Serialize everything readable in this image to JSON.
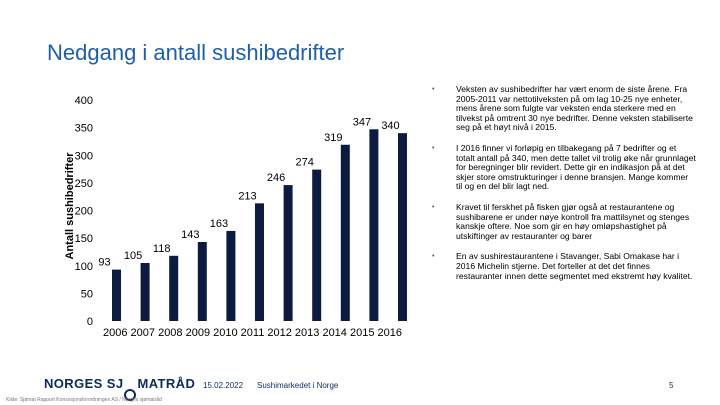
{
  "slide": {
    "title": "Nedgang i antall sushibedrifter",
    "bullets": [
      "Veksten av sushibedrifter har vært enorm de siste årene. Fra 2005-2011 var nettotilveksten på om lag 10-25 nye enheter, mens årene som fulgte var veksten enda sterkere med en tilvekst på omtrent 30 nye bedrifter. Denne veksten stabiliserte seg på et høyt nivå i 2015.",
      "I 2016 finner vi forløpig en tilbakegang på 7 bedrifter og et totalt antall på 340, men dette tallet vil trolig øke når grunnlaget for beregninger blir revidert. Dette gir en indikasjon på at det skjer store omstrukturinger i denne bransjen. Mange kommer til og en del blir lagt ned.",
      "Kravet til ferskhet på fisken gjør også at restaurantene og sushibarene er under nøye kontroll fra mattilsynet og stenges kanskje oftere. Noe som gir en høy omløpshastighet på utskiftinger av restauranter og barer",
      "En av sushirestaurantene i Stavanger, Sabi Omakase har i 2016 Michelin stjerne. Det forteller at det det finnes restauranter innen dette segmentet med ekstremt høy kvalitet."
    ],
    "bullet_icon": "bullet-dot-icon"
  },
  "footer": {
    "logo_left": "NORGES SJ",
    "logo_ring": "Ø",
    "logo_right": "MATRÅD",
    "date": "15.02.2022",
    "presentation_title": "Sushimarkedet i Norge",
    "page_number": "5",
    "source": "Kilde: Sjømat Rapport Konsesjonsforordningen AS / Norges sjømatråd"
  },
  "colors": {
    "title": "#1f5fa8",
    "bar": "#0d1b3e",
    "brand": "#0d2a5c"
  },
  "chart_data": {
    "type": "bar",
    "title": "",
    "xlabel": "",
    "ylabel": "Antall sushibedrifter",
    "categories": [
      "2006",
      "2007",
      "2008",
      "2009",
      "2010",
      "2011",
      "2012",
      "2013",
      "2014",
      "2015",
      "2016"
    ],
    "values": [
      93,
      105,
      118,
      143,
      163,
      213,
      246,
      274,
      319,
      347,
      340
    ],
    "ylim": [
      0,
      400
    ],
    "yticks": [
      "0",
      "50",
      "100",
      "150",
      "200",
      "250",
      "300",
      "350",
      "400"
    ],
    "grid": false
  }
}
